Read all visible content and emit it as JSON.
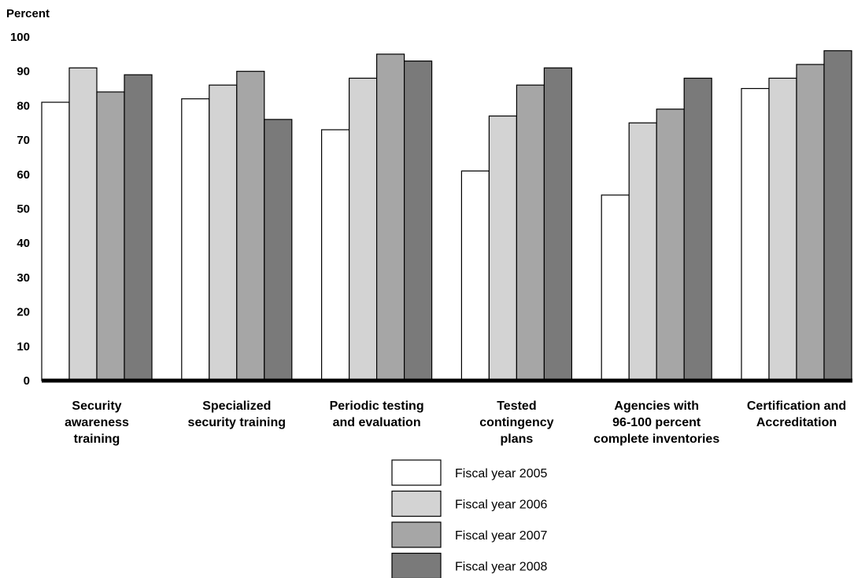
{
  "chart_data": {
    "type": "bar",
    "ylabel": "Percent",
    "ylim": [
      0,
      100
    ],
    "yticks": [
      0,
      10,
      20,
      30,
      40,
      50,
      60,
      70,
      80,
      90,
      100
    ],
    "grid": false,
    "legend_position": "bottom-center",
    "categories": [
      [
        "Security",
        "awareness",
        "training"
      ],
      [
        "Specialized",
        "security training"
      ],
      [
        "Periodic testing",
        "and evaluation"
      ],
      [
        "Tested",
        "contingency",
        "plans"
      ],
      [
        "Agencies with",
        "96-100 percent",
        "complete inventories"
      ],
      [
        "Certification and",
        "Accreditation"
      ]
    ],
    "series": [
      {
        "name": "Fiscal year 2005",
        "color": "#ffffff",
        "values": [
          81,
          82,
          73,
          61,
          54,
          85
        ]
      },
      {
        "name": "Fiscal year 2006",
        "color": "#d3d3d3",
        "values": [
          91,
          86,
          88,
          77,
          75,
          88
        ]
      },
      {
        "name": "Fiscal year 2007",
        "color": "#a6a6a6",
        "values": [
          84,
          90,
          95,
          86,
          79,
          92
        ]
      },
      {
        "name": "Fiscal year 2008",
        "color": "#7a7a7a",
        "values": [
          89,
          76,
          93,
          91,
          88,
          96
        ]
      }
    ]
  }
}
